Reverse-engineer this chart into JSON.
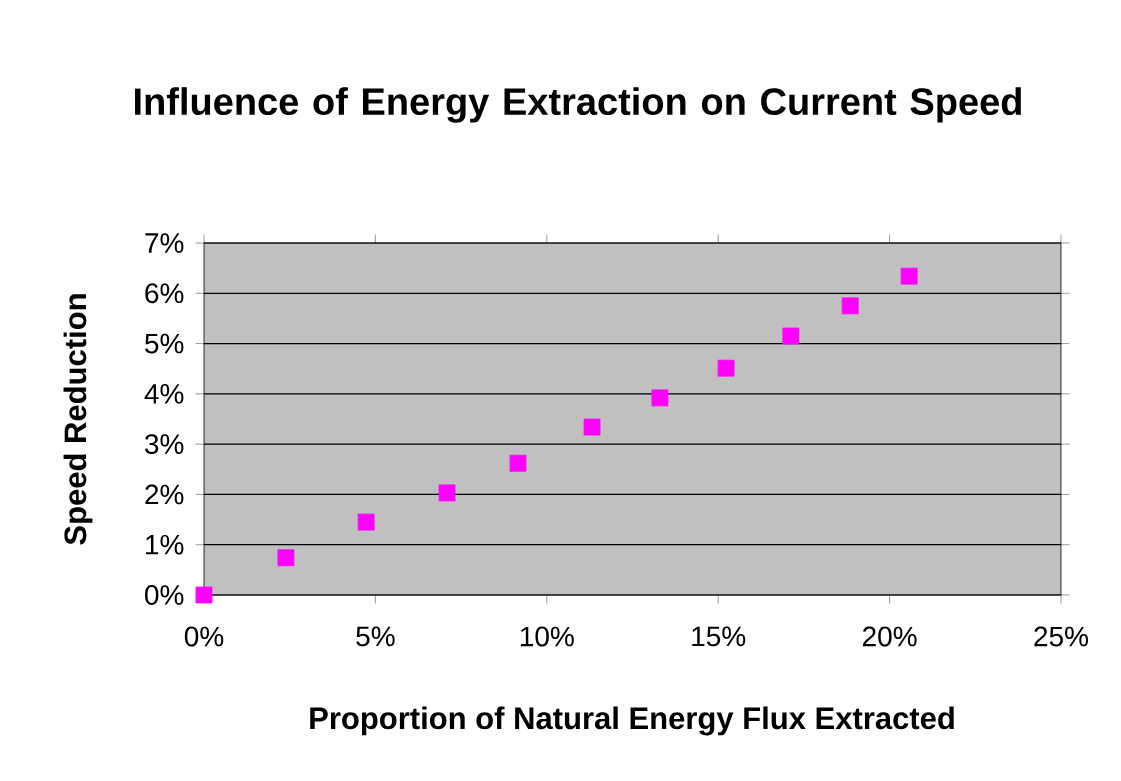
{
  "chart_data": {
    "type": "scatter",
    "title": "Influence of Energy Extraction on Current Speed",
    "xlabel": "Proportion of Natural Energy Flux Extracted",
    "ylabel": "Speed Reduction",
    "x": [
      0,
      2.39,
      4.73,
      7.09,
      9.16,
      11.32,
      13.3,
      15.23,
      17.12,
      18.85,
      20.57
    ],
    "values": [
      0,
      0.74,
      1.45,
      2.03,
      2.62,
      3.34,
      3.92,
      4.51,
      5.15,
      5.75,
      6.34
    ],
    "color": "#ff00ff",
    "marker": "square",
    "grid": "y",
    "xlim": [
      0,
      25
    ],
    "ylim": [
      0,
      7
    ],
    "xticks": [
      {
        "value": 0,
        "label": "0%"
      },
      {
        "value": 5,
        "label": "5%"
      },
      {
        "value": 10,
        "label": "10%"
      },
      {
        "value": 15,
        "label": "15%"
      },
      {
        "value": 20,
        "label": "20%"
      },
      {
        "value": 25,
        "label": "25%"
      }
    ],
    "yticks": [
      {
        "value": 0,
        "label": "0%"
      },
      {
        "value": 1,
        "label": "1%"
      },
      {
        "value": 2,
        "label": "2%"
      },
      {
        "value": 3,
        "label": "3%"
      },
      {
        "value": 4,
        "label": "4%"
      },
      {
        "value": 5,
        "label": "5%"
      },
      {
        "value": 6,
        "label": "6%"
      },
      {
        "value": 7,
        "label": "7%"
      }
    ]
  }
}
